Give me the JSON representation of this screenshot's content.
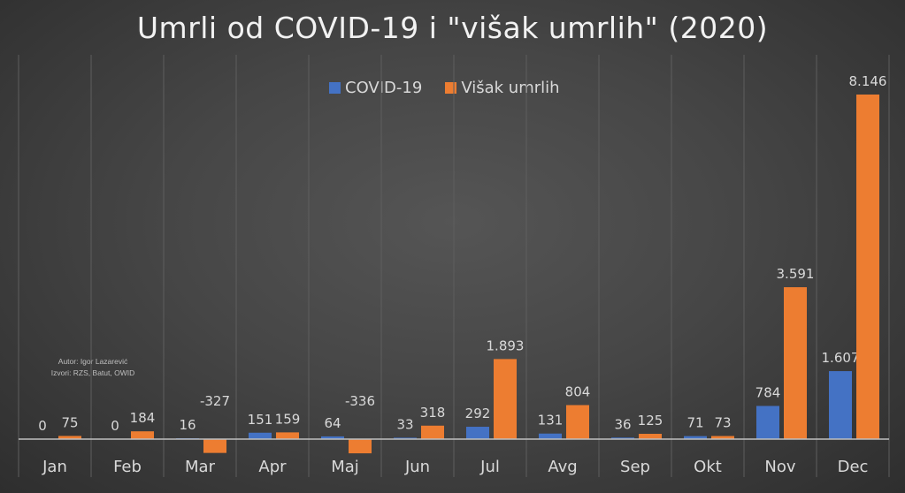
{
  "chart_data": {
    "type": "bar",
    "title": "Umrli od COVID-19 i \"višak umrlih\" (2020)",
    "categories": [
      "Jan",
      "Feb",
      "Mar",
      "Apr",
      "Maj",
      "Jun",
      "Jul",
      "Avg",
      "Sep",
      "Okt",
      "Nov",
      "Dec"
    ],
    "series": [
      {
        "name": "COVID-19",
        "color": "#4472c4",
        "values": [
          0,
          0,
          16,
          151,
          64,
          33,
          292,
          131,
          36,
          71,
          784,
          1607
        ],
        "labels": [
          "0",
          "0",
          "16",
          "151",
          "64",
          "33",
          "292",
          "131",
          "36",
          "71",
          "784",
          "1.607"
        ]
      },
      {
        "name": "Višak umrlih",
        "color": "#ed7d31",
        "values": [
          75,
          184,
          -327,
          159,
          -336,
          318,
          1893,
          804,
          125,
          73,
          3591,
          8146
        ],
        "labels": [
          "75",
          "184",
          "-327",
          "159",
          "-336",
          "318",
          "1.893",
          "804",
          "125",
          "73",
          "3.591",
          "8.146"
        ]
      }
    ],
    "legend_position": "top",
    "grid": "vertical category separators",
    "xlabel": "",
    "ylabel": "",
    "ylim": [
      -400,
      8600
    ]
  },
  "credits": {
    "author": "Autor: Igor Lazarević",
    "sources": "Izvori: RZS, Batut, OWID"
  }
}
